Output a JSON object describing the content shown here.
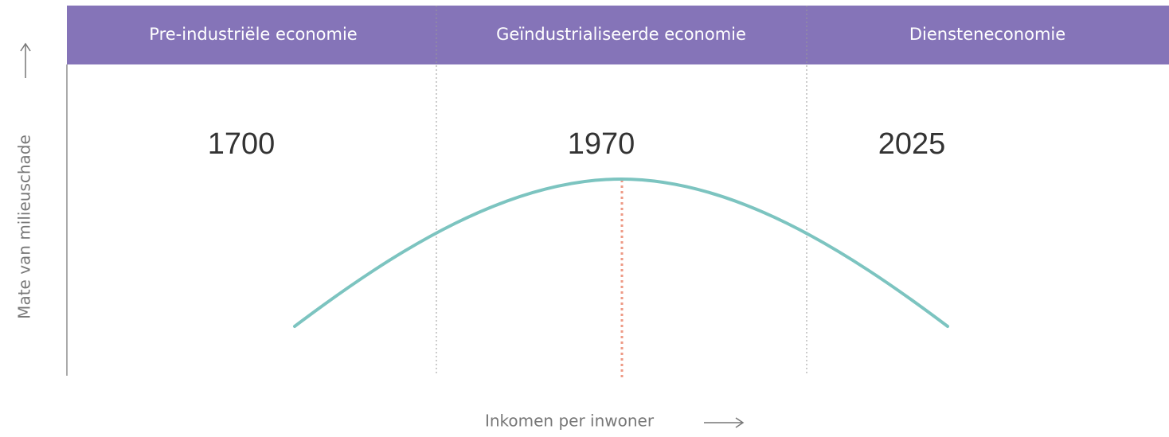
{
  "phases": [
    "Pre-industriële economie",
    "Geïndustrialiseerde economie",
    "Diensteneconomie"
  ],
  "years": [
    "1700",
    "1970",
    "2025"
  ],
  "y_axis_label": "Mate van milieuschade",
  "x_axis_label": "Inkomen per inwoner"
}
